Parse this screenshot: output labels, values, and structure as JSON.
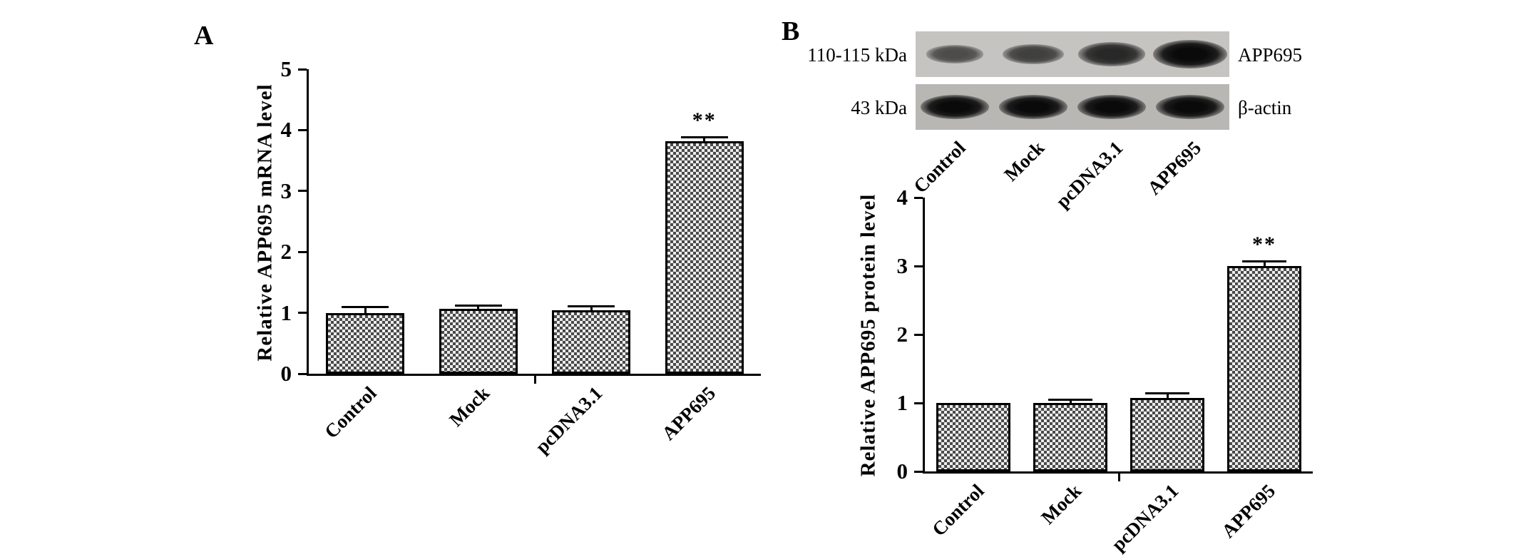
{
  "figure": {
    "panel_a_label": "A",
    "panel_b_label": "B"
  },
  "blot": {
    "left_labels": [
      "110-115 kDa",
      "43 kDa"
    ],
    "right_labels": [
      "APP695",
      "β-actin"
    ],
    "lane_labels": [
      "Control",
      "Mock",
      "pcDNA3.1",
      "APP695"
    ],
    "rows": [
      {
        "name": "APP695",
        "band_intensities": [
          0.45,
          0.55,
          0.75,
          1.0
        ]
      },
      {
        "name": "β-actin",
        "band_intensities": [
          1.0,
          1.0,
          1.0,
          1.0
        ]
      }
    ]
  },
  "chart_data": [
    {
      "type": "bar",
      "panel": "A",
      "title": "",
      "xlabel": "",
      "ylabel": "Relative APP695 mRNA level",
      "categories": [
        "Control",
        "Mock",
        "pcDNA3.1",
        "APP695"
      ],
      "values": [
        1.0,
        1.06,
        1.04,
        3.82
      ],
      "errors": [
        0.08,
        0.04,
        0.05,
        0.05
      ],
      "ylim": [
        0,
        5
      ],
      "yticks": [
        0,
        1,
        2,
        3,
        4,
        5
      ],
      "significance": [
        {
          "category": "APP695",
          "label": "**"
        }
      ],
      "bar_fill": "checkerboard",
      "grid": false,
      "legend": "none"
    },
    {
      "type": "bar",
      "panel": "B",
      "title": "",
      "xlabel": "",
      "ylabel": "Relative APP695 protein level",
      "categories": [
        "Control",
        "Mock",
        "pcDNA3.1",
        "APP695"
      ],
      "values": [
        1.0,
        1.0,
        1.07,
        3.0
      ],
      "errors": [
        0,
        0.03,
        0.05,
        0.05
      ],
      "ylim": [
        0,
        4
      ],
      "yticks": [
        0,
        1,
        2,
        3,
        4
      ],
      "significance": [
        {
          "category": "APP695",
          "label": "**"
        }
      ],
      "bar_fill": "checkerboard",
      "grid": false,
      "legend": "none"
    }
  ]
}
